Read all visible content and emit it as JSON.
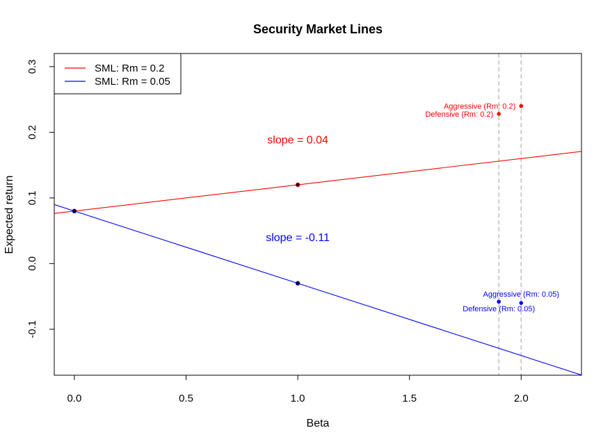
{
  "chart_data": {
    "type": "line",
    "title": "Security Market Lines",
    "xlabel": "Beta",
    "ylabel": "Expected return",
    "xlim": [
      -0.09,
      2.27
    ],
    "ylim": [
      -0.17,
      0.32
    ],
    "x_ticks": [
      0.0,
      0.5,
      1.0,
      1.5,
      2.0
    ],
    "x_tick_labels": [
      "0.0",
      "0.5",
      "1.0",
      "1.5",
      "2.0"
    ],
    "y_ticks": [
      -0.1,
      0.0,
      0.1,
      0.2,
      0.3
    ],
    "y_tick_labels": [
      "-0.1",
      "0.0",
      "0.1",
      "0.2",
      "0.3"
    ],
    "grid": false,
    "legend_position": "top-left",
    "series": [
      {
        "name": "SML: Rm = 0.2",
        "color": "#ff0000",
        "intercept": 0.08,
        "slope": 0.04,
        "points": [
          {
            "x": 0,
            "y": 0.08
          },
          {
            "x": 1,
            "y": 0.12
          }
        ]
      },
      {
        "name": "SML: Rm = 0.05",
        "color": "#0000ff",
        "intercept": 0.08,
        "slope": -0.11,
        "points": [
          {
            "x": 0,
            "y": 0.08
          },
          {
            "x": 1,
            "y": -0.03
          }
        ]
      }
    ],
    "slope_annotations": [
      {
        "text": "slope =  0.04",
        "x": 1.0,
        "y": 0.183,
        "color": "#ff0000"
      },
      {
        "text": "slope =  -0.11",
        "x": 1.0,
        "y": 0.034,
        "color": "#0000ff"
      }
    ],
    "vertical_lines": [
      {
        "x": 1.9,
        "color": "#bebebe",
        "style": "dashed"
      },
      {
        "x": 2.0,
        "color": "#bebebe",
        "style": "dashed"
      }
    ],
    "stocks": [
      {
        "label": "Aggressive (Rm: 0.2)",
        "x": 2.0,
        "y": 0.24,
        "color": "#ff0000",
        "label_side": "left",
        "label_offset": 0
      },
      {
        "label": "Defensive (Rm: 0.2)",
        "x": 1.9,
        "y": 0.228,
        "color": "#ff0000",
        "label_side": "left",
        "label_offset": 0
      },
      {
        "label": "Aggressive (Rm: 0.05)",
        "x": 2.0,
        "y": -0.06,
        "color": "#0000ff",
        "label_side": "above",
        "label_offset": 0
      },
      {
        "label": "Defensive (Rm: 0.05)",
        "x": 1.9,
        "y": -0.058,
        "color": "#0000ff",
        "label_side": "below",
        "label_offset": 0
      }
    ]
  }
}
